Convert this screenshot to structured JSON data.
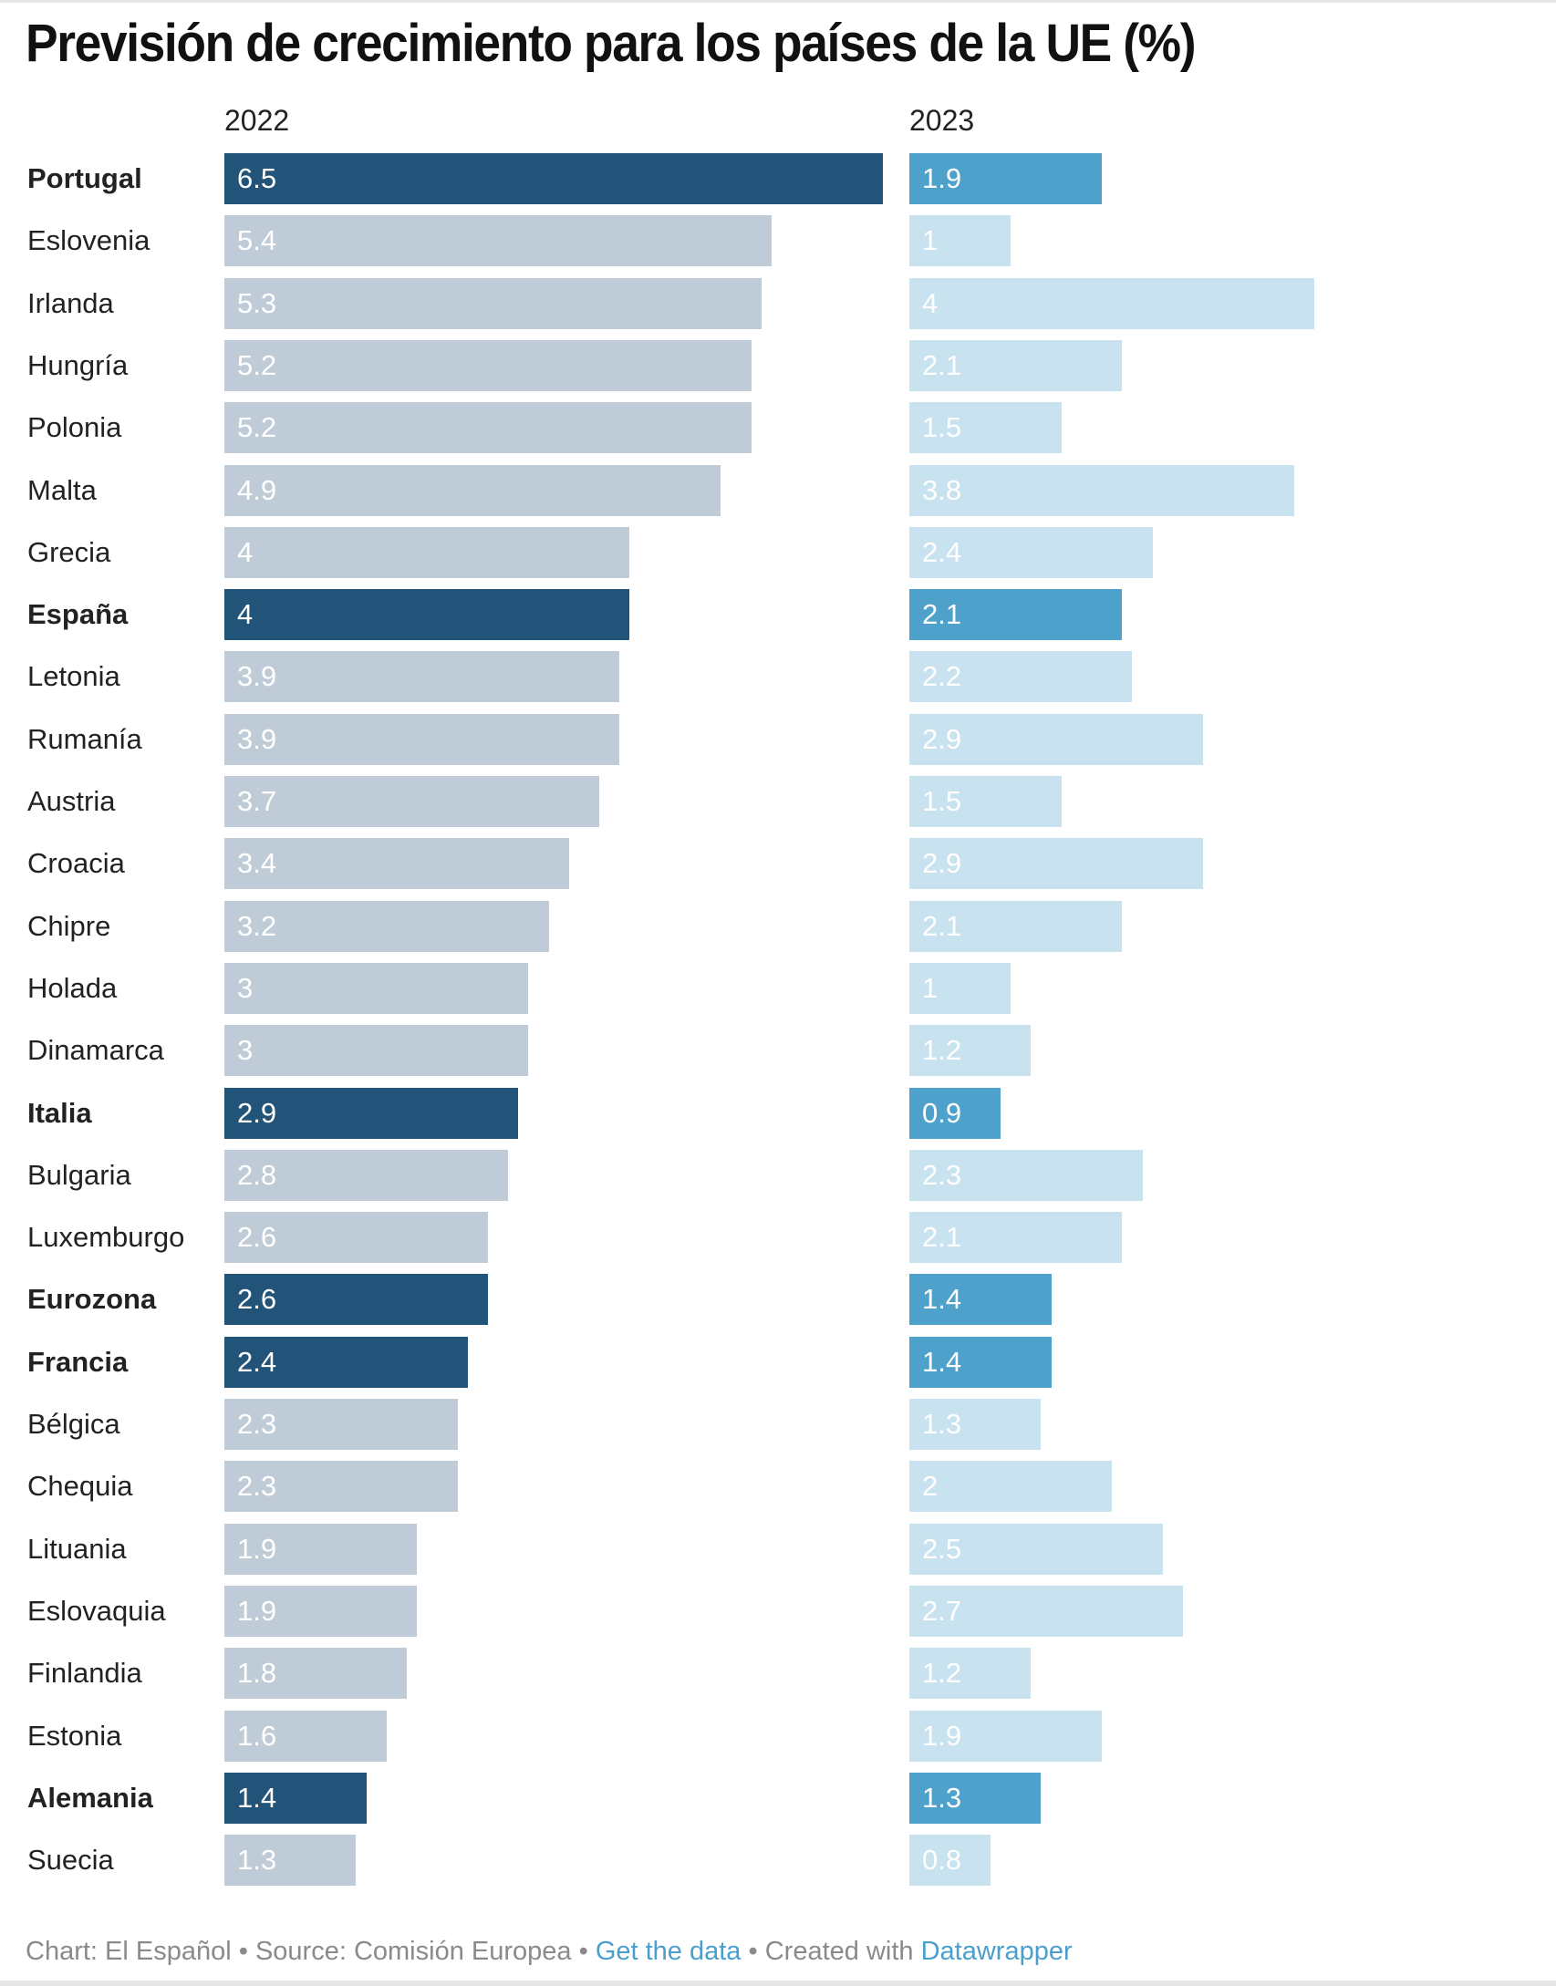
{
  "chart_data": {
    "type": "bar",
    "orientation": "horizontal",
    "title": "Previsión de crecimiento para los países de la UE (%)",
    "categories": [
      "Portugal",
      "Eslovenia",
      "Irlanda",
      "Hungría",
      "Polonia",
      "Malta",
      "Grecia",
      "España",
      "Letonia",
      "Rumanía",
      "Austria",
      "Croacia",
      "Chipre",
      "Holada",
      "Dinamarca",
      "Italia",
      "Bulgaria",
      "Luxemburgo",
      "Eurozona",
      "Francia",
      "Bélgica",
      "Chequia",
      "Lituania",
      "Eslovaquia",
      "Finlandia",
      "Estonia",
      "Alemania",
      "Suecia"
    ],
    "highlighted": [
      "Portugal",
      "España",
      "Italia",
      "Eurozona",
      "Francia",
      "Alemania"
    ],
    "series": [
      {
        "name": "2022",
        "values": [
          6.5,
          5.4,
          5.3,
          5.2,
          5.2,
          4.9,
          4,
          4,
          3.9,
          3.9,
          3.7,
          3.4,
          3.2,
          3,
          3,
          2.9,
          2.8,
          2.6,
          2.6,
          2.4,
          2.3,
          2.3,
          1.9,
          1.9,
          1.8,
          1.6,
          1.4,
          1.3
        ],
        "color": "#bfccd7",
        "highlight_color": "#225378"
      },
      {
        "name": "2023",
        "values": [
          1.9,
          1,
          4,
          2.1,
          1.5,
          3.8,
          2.4,
          2.1,
          2.2,
          2.9,
          1.5,
          2.9,
          2.1,
          1,
          1.2,
          0.9,
          2.3,
          2.1,
          1.4,
          1.4,
          1.3,
          2,
          2.5,
          2.7,
          1.2,
          1.9,
          1.3,
          0.8
        ],
        "color": "#c9e2f0",
        "highlight_color": "#4ea1cb"
      }
    ],
    "data_labels": true,
    "grid": false
  },
  "footer": {
    "chart_credit": "Chart: El Español",
    "separator": " • ",
    "source": "Source: Comisión Europea",
    "get_data": "Get the data",
    "created_with": "Created with",
    "datawrapper": "Datawrapper"
  }
}
